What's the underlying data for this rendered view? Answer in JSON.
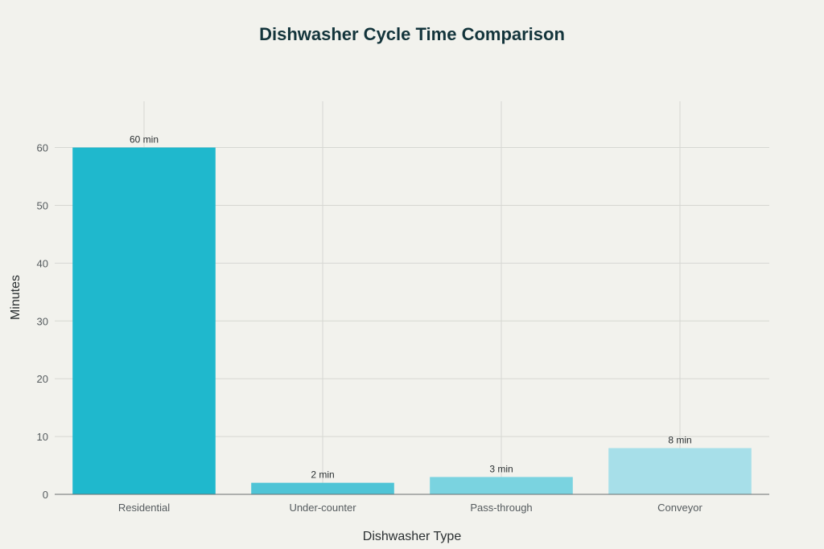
{
  "chart_data": {
    "type": "bar",
    "title": "Dishwasher Cycle Time Comparison",
    "xlabel": "Dishwasher Type",
    "ylabel": "Minutes",
    "categories": [
      "Residential",
      "Under-counter",
      "Pass-through",
      "Conveyor"
    ],
    "values": [
      60,
      2,
      3,
      8
    ],
    "data_labels": [
      "60 min",
      "2 min",
      "3 min",
      "8 min"
    ],
    "colors": [
      "#1fb8cd",
      "#4fc4d6",
      "#7ad3e0",
      "#a7dfe9"
    ],
    "ylim": [
      0,
      68
    ],
    "yticks": [
      0,
      10,
      20,
      30,
      40,
      50,
      60
    ],
    "grid": true,
    "legend": "none"
  }
}
